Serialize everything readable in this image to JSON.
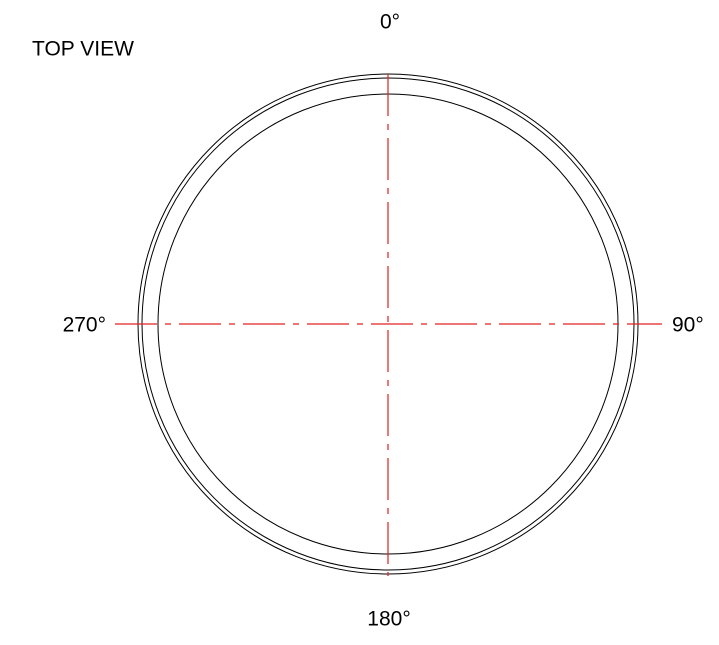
{
  "title": "TOP VIEW",
  "angles": {
    "top": "0°",
    "right": "90°",
    "bottom": "180°",
    "left": "270°"
  }
}
